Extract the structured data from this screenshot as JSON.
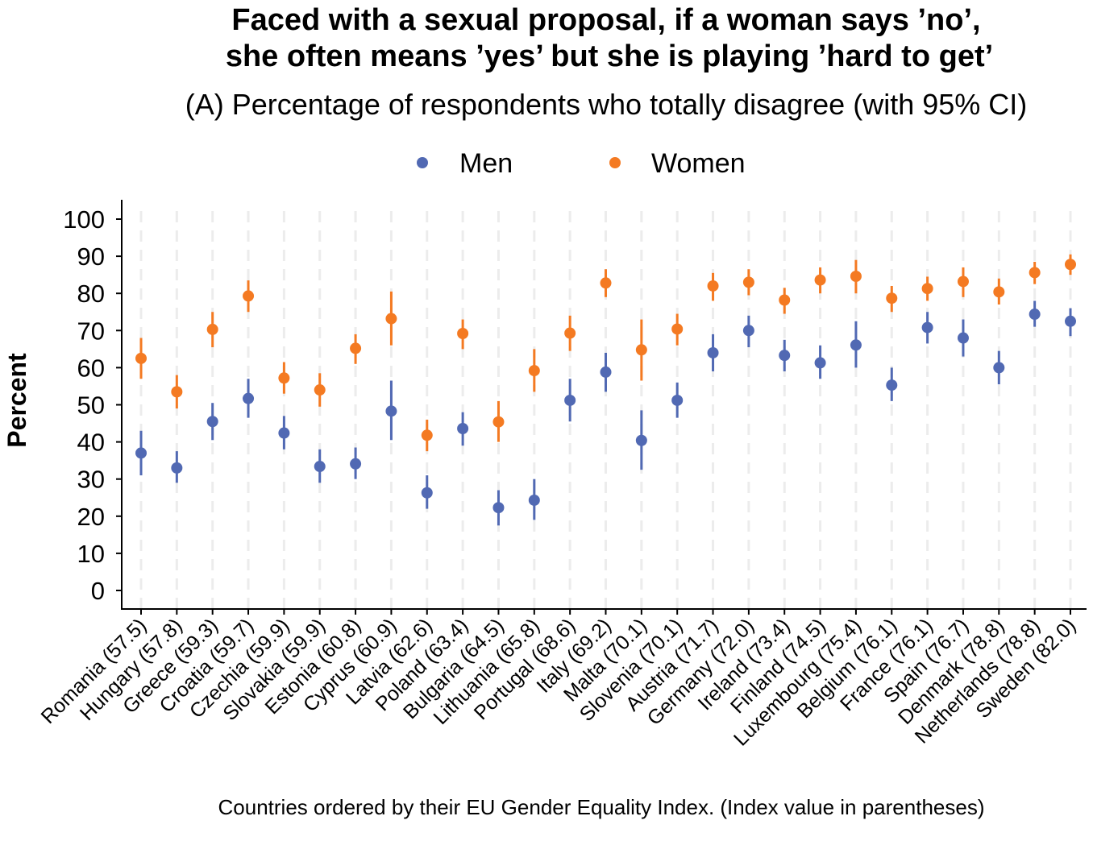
{
  "chart_data": {
    "type": "scatter",
    "title_line1": "Faced with a sexual proposal, if a woman says ’no’,",
    "title_line2": "she often means ’yes’ but she is playing ’hard to get’",
    "subtitle": "(A) Percentage of respondents who totally disagree (with 95% CI)",
    "ylabel": "Percent",
    "xlabel": "Countries ordered by their EU Gender Equality Index. (Index value in parentheses)",
    "ylim": [
      0,
      100
    ],
    "yticks": [
      0,
      10,
      20,
      30,
      40,
      50,
      60,
      70,
      80,
      90,
      100
    ],
    "grid": "vertical dashed",
    "legend_position": "top-center",
    "categories": [
      "Romania (57.5)",
      "Hungary (57.8)",
      "Greece (59.3)",
      "Croatia (59.7)",
      "Czechia (59.9)",
      "Slovakia (59.9)",
      "Estonia (60.8)",
      "Cyprus (60.9)",
      "Latvia (62.6)",
      "Poland (63.4)",
      "Bulgaria (64.5)",
      "Lithuania (65.8)",
      "Portugal (68.6)",
      "Italy (69.2)",
      "Malta (70.1)",
      "Slovenia (70.1)",
      "Austria (71.7)",
      "Germany (72.0)",
      "Ireland (73.4)",
      "Finland (74.5)",
      "Luxembourg (75.4)",
      "Belgium (76.1)",
      "France (76.1)",
      "Spain (76.7)",
      "Denmark (78.8)",
      "Netherlands (78.8)",
      "Sweden (82.0)"
    ],
    "series": [
      {
        "name": "Men",
        "color": "#5169B3",
        "values": [
          37,
          33,
          45.5,
          51.7,
          42.4,
          33.4,
          34.1,
          48.3,
          26.3,
          43.6,
          22.3,
          24.3,
          51.2,
          58.8,
          40.4,
          51.2,
          64,
          70,
          63.3,
          61.3,
          66.1,
          55.3,
          70.8,
          68,
          60,
          74.4,
          72.5
        ],
        "ci_low": [
          31,
          29,
          40.5,
          46.5,
          38,
          29,
          30,
          40.5,
          22,
          39,
          17.5,
          19,
          45.5,
          53.5,
          32.5,
          46.5,
          59,
          65.5,
          59,
          57,
          60,
          51,
          66.5,
          63,
          55.5,
          71,
          68.5
        ],
        "ci_high": [
          43,
          37.5,
          50.5,
          57,
          47,
          38,
          38.5,
          56.5,
          31,
          48,
          27,
          30,
          57,
          64,
          48.5,
          56,
          69,
          74,
          67.5,
          66,
          72.5,
          60,
          75,
          73,
          64.5,
          78,
          76
        ]
      },
      {
        "name": "Women",
        "color": "#F47A22",
        "values": [
          62.5,
          53.5,
          70.3,
          79.3,
          57.2,
          54,
          65.2,
          73.2,
          41.8,
          69.2,
          45.4,
          59.2,
          69.3,
          82.8,
          64.8,
          70.4,
          82,
          83,
          78.2,
          83.6,
          84.6,
          78.7,
          81.3,
          83.2,
          80.4,
          85.6,
          87.8
        ],
        "ci_low": [
          57,
          49,
          65.5,
          75,
          53,
          49.5,
          61,
          66,
          37.5,
          65,
          40,
          53.5,
          64.5,
          79,
          56.5,
          66,
          78,
          79.5,
          74.5,
          80,
          80,
          75,
          78,
          79,
          77,
          82.5,
          85
        ],
        "ci_high": [
          68,
          58,
          75,
          83.5,
          61.5,
          58.5,
          69,
          80.5,
          46,
          73,
          51,
          65,
          74,
          86.5,
          73,
          74.5,
          85.5,
          86.5,
          81.5,
          87,
          89,
          82,
          84.5,
          87,
          84,
          88.5,
          90.5
        ]
      }
    ]
  }
}
